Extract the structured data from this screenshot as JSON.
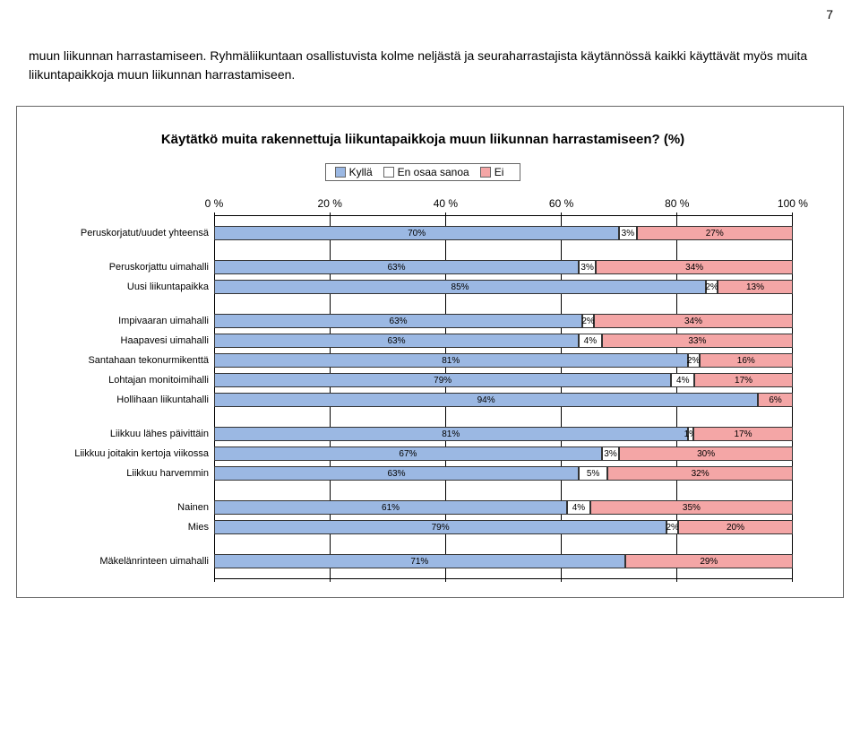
{
  "page_number": "7",
  "intro_text": "muun liikunnan harrastamiseen. Ryhmäliikuntaan osallistuvista kolme neljästä ja seuraharrastajista käytännössä kaikki käyttävät myös muita liikuntapaikkoja muun liikunnan harrastamiseen.",
  "chart": {
    "title": "Käytätkö muita rakennettuja liikuntapaikkoja muun liikunnan harrastamiseen? (%)",
    "legend": [
      {
        "label": "Kyllä",
        "color": "#9bb8e3"
      },
      {
        "label": "En osaa sanoa",
        "color": "#ffffff"
      },
      {
        "label": "Ei",
        "color": "#f4a6a6"
      }
    ],
    "axis": {
      "ticks": [
        "0 %",
        "20 %",
        "40 %",
        "60 %",
        "80 %",
        "100 %"
      ]
    },
    "groups": [
      {
        "rows": [
          {
            "label": "Peruskorjatut/uudet yhteensä",
            "segs": [
              {
                "pct": 70,
                "text": "70%",
                "color": "#9bb8e3"
              },
              {
                "pct": 3,
                "text": "3%",
                "color": "#ffffff"
              },
              {
                "pct": 27,
                "text": "27%",
                "color": "#f4a6a6"
              }
            ]
          }
        ]
      },
      {
        "rows": [
          {
            "label": "Peruskorjattu uimahalli",
            "segs": [
              {
                "pct": 63,
                "text": "63%",
                "color": "#9bb8e3"
              },
              {
                "pct": 3,
                "text": "3%",
                "color": "#ffffff"
              },
              {
                "pct": 34,
                "text": "34%",
                "color": "#f4a6a6"
              }
            ]
          },
          {
            "label": "Uusi liikuntapaikka",
            "segs": [
              {
                "pct": 85,
                "text": "85%",
                "color": "#9bb8e3"
              },
              {
                "pct": 2,
                "text": "2%",
                "color": "#ffffff"
              },
              {
                "pct": 13,
                "text": "13%",
                "color": "#f4a6a6"
              }
            ]
          }
        ]
      },
      {
        "rows": [
          {
            "label": "Impivaaran uimahalli",
            "segs": [
              {
                "pct": 63,
                "text": "63%",
                "color": "#9bb8e3"
              },
              {
                "pct": 2,
                "text": "2%",
                "color": "#ffffff"
              },
              {
                "pct": 34,
                "text": "34%",
                "color": "#f4a6a6"
              }
            ]
          },
          {
            "label": "Haapavesi uimahalli",
            "segs": [
              {
                "pct": 63,
                "text": "63%",
                "color": "#9bb8e3"
              },
              {
                "pct": 4,
                "text": "4%",
                "color": "#ffffff"
              },
              {
                "pct": 33,
                "text": "33%",
                "color": "#f4a6a6"
              }
            ]
          },
          {
            "label": "Santahaan tekonurmikenttä",
            "segs": [
              {
                "pct": 81,
                "text": "81%",
                "color": "#9bb8e3"
              },
              {
                "pct": 2,
                "text": "2%",
                "color": "#ffffff"
              },
              {
                "pct": 16,
                "text": "16%",
                "color": "#f4a6a6"
              }
            ]
          },
          {
            "label": "Lohtajan monitoimihalli",
            "segs": [
              {
                "pct": 79,
                "text": "79%",
                "color": "#9bb8e3"
              },
              {
                "pct": 4,
                "text": "4%",
                "color": "#ffffff"
              },
              {
                "pct": 17,
                "text": "17%",
                "color": "#f4a6a6"
              }
            ]
          },
          {
            "label": "Hollihaan liikuntahalli",
            "segs": [
              {
                "pct": 94,
                "text": "94%",
                "color": "#9bb8e3"
              },
              {
                "pct": 6,
                "text": "6%",
                "color": "#f4a6a6"
              }
            ]
          }
        ]
      },
      {
        "rows": [
          {
            "label": "Liikkuu lähes päivittäin",
            "segs": [
              {
                "pct": 81,
                "text": "81%",
                "color": "#9bb8e3"
              },
              {
                "pct": 1,
                "text": "1%",
                "color": "#ffffff"
              },
              {
                "pct": 17,
                "text": "17%",
                "color": "#f4a6a6"
              }
            ]
          },
          {
            "label": "Liikkuu joitakin kertoja viikossa",
            "segs": [
              {
                "pct": 67,
                "text": "67%",
                "color": "#9bb8e3"
              },
              {
                "pct": 3,
                "text": "3%",
                "color": "#ffffff"
              },
              {
                "pct": 30,
                "text": "30%",
                "color": "#f4a6a6"
              }
            ]
          },
          {
            "label": "Liikkuu harvemmin",
            "segs": [
              {
                "pct": 63,
                "text": "63%",
                "color": "#9bb8e3"
              },
              {
                "pct": 5,
                "text": "5%",
                "color": "#ffffff"
              },
              {
                "pct": 32,
                "text": "32%",
                "color": "#f4a6a6"
              }
            ]
          }
        ]
      },
      {
        "rows": [
          {
            "label": "Nainen",
            "segs": [
              {
                "pct": 61,
                "text": "61%",
                "color": "#9bb8e3"
              },
              {
                "pct": 4,
                "text": "4%",
                "color": "#ffffff"
              },
              {
                "pct": 35,
                "text": "35%",
                "color": "#f4a6a6"
              }
            ]
          },
          {
            "label": "Mies",
            "segs": [
              {
                "pct": 79,
                "text": "79%",
                "color": "#9bb8e3"
              },
              {
                "pct": 2,
                "text": "2%",
                "color": "#ffffff"
              },
              {
                "pct": 20,
                "text": "20%",
                "color": "#f4a6a6"
              }
            ]
          }
        ]
      },
      {
        "rows": [
          {
            "label": "Mäkelänrinteen uimahalli",
            "segs": [
              {
                "pct": 71,
                "text": "71%",
                "color": "#9bb8e3"
              },
              {
                "pct": 29,
                "text": "29%",
                "color": "#f4a6a6"
              }
            ]
          }
        ]
      }
    ]
  }
}
